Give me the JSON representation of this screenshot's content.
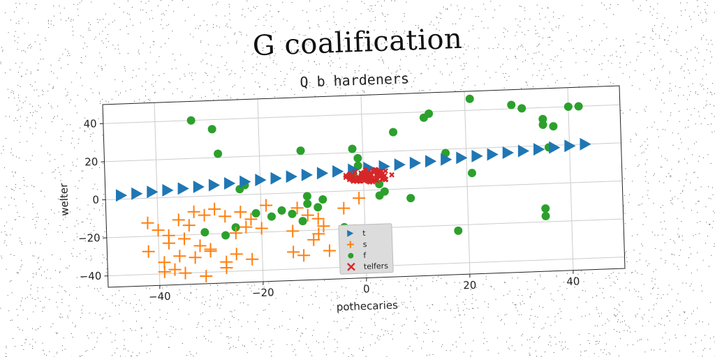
{
  "chart_data": {
    "type": "scatter",
    "title": "G coalification",
    "subtitle": "Q b hardeners",
    "xlabel": "pothecaries",
    "ylabel": "welter",
    "xlim": [
      -50,
      50
    ],
    "ylim": [
      -46,
      50
    ],
    "xticks": [
      -40,
      -20,
      0,
      20,
      40
    ],
    "yticks": [
      -40,
      -20,
      0,
      20,
      40
    ],
    "xtick_labels": [
      "−40",
      "−20",
      "0",
      "20",
      "40"
    ],
    "ytick_labels": [
      "−40",
      "−20",
      "0",
      "20",
      "40"
    ],
    "grid": true,
    "legend_position": "lower-center",
    "colors": {
      "t": "#1f77b4",
      "s": "#ff7f0e",
      "f": "#2ca02c",
      "telfers": "#d62728"
    },
    "series": [
      {
        "name": "t",
        "marker": "triangle-right",
        "x": [
          -47.0,
          -44.0,
          -41.0,
          -38.0,
          -35.0,
          -32.0,
          -29.0,
          -26.0,
          -23.0,
          -20.0,
          -17.0,
          -14.0,
          -11.0,
          -8.0,
          -5.0,
          -2.0,
          1.0,
          4.0,
          7.0,
          10.0,
          13.0,
          16.0,
          19.0,
          22.0,
          25.0,
          28.0,
          31.0,
          34.0,
          37.0,
          40.0,
          43.0
        ],
        "y": [
          2.0,
          2.6,
          3.2,
          3.8,
          4.4,
          5.0,
          5.6,
          6.2,
          6.8,
          7.4,
          8.0,
          8.6,
          9.2,
          9.8,
          10.4,
          11.0,
          11.6,
          12.2,
          12.8,
          13.4,
          14.0,
          14.6,
          15.2,
          15.8,
          16.4,
          17.0,
          17.6,
          18.2,
          18.8,
          19.4,
          20.0
        ]
      },
      {
        "name": "s",
        "marker": "plus",
        "x": [
          -42,
          -40,
          -38,
          -36,
          -34,
          -33,
          -31,
          -29,
          -27,
          -24,
          -22,
          -19,
          -38,
          -35,
          -32,
          -30,
          -25,
          -23,
          -20,
          -42,
          -39,
          -36,
          -33,
          -30,
          -27,
          -25,
          -22,
          -39,
          -37,
          -35,
          -31,
          -27,
          -14,
          -12,
          -10,
          -13,
          -11,
          -9,
          -8,
          -14,
          -9,
          -7,
          -3,
          -2,
          -4,
          -1
        ],
        "y": [
          -13,
          -17,
          -20,
          -12,
          -15,
          -8,
          -10,
          -7,
          -11,
          -9,
          -13,
          -6,
          -24,
          -22,
          -26,
          -28,
          -20,
          -17,
          -18,
          -28,
          -34,
          -31,
          -32,
          -29,
          -35,
          -31,
          -34,
          -39,
          -38,
          -40,
          -42,
          -38,
          -31,
          -33,
          -25,
          -8,
          -12,
          -14,
          -18,
          -20,
          -22,
          -31,
          -25,
          -21,
          -9,
          -4
        ],
        "values_approximate": true
      },
      {
        "name": "f",
        "marker": "circle",
        "x": [
          -33,
          -29,
          -28,
          -24,
          -23,
          -18,
          -12,
          -11,
          -11,
          -9,
          -8,
          -4,
          -2,
          -1,
          -1,
          -2,
          1,
          3,
          3,
          4,
          6,
          9,
          12,
          13,
          16,
          18,
          21,
          21,
          29,
          31,
          35,
          35,
          35,
          35,
          36,
          37,
          40,
          42,
          -31,
          -27,
          -21,
          -16,
          -25,
          -14,
          -12
        ],
        "y": [
          40,
          35,
          22,
          3,
          5,
          -12,
          22,
          -2,
          -6,
          -8,
          -4,
          -19,
          22,
          17,
          13,
          9,
          8,
          3,
          -3,
          -1,
          30,
          -5,
          37,
          39,
          18,
          -23,
          46,
          7,
          42,
          40,
          31,
          34,
          -13,
          -17,
          19,
          30,
          40,
          40,
          -19,
          -21,
          -10,
          -9,
          -17,
          -11,
          -15
        ],
        "values_approximate": true
      },
      {
        "name": "telfers",
        "marker": "x",
        "cx": 1,
        "cy": 7.5,
        "spread_x": 4.5,
        "spread_y": 3.5,
        "count": 90,
        "values_approximate": true
      }
    ]
  }
}
